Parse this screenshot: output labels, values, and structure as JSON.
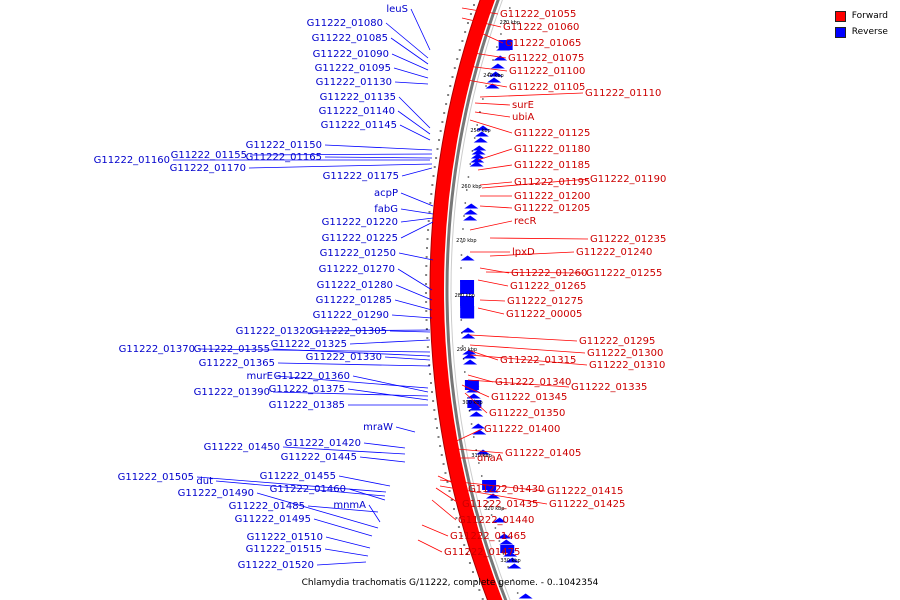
{
  "legend": {
    "items": [
      {
        "label": "Forward",
        "color": "#ff0000"
      },
      {
        "label": "Reverse",
        "color": "#0000ff"
      }
    ]
  },
  "caption": "Chlamydia trachomatis G/11222, complete genome. - 0..1042354",
  "colors": {
    "forward": "#ff0000",
    "reverse": "#0000ff",
    "backbone": "#888888",
    "tick": "#000000"
  },
  "scale_labels": [
    "220 kbp",
    "240 kbp",
    "250 kbp",
    "260 kbp",
    "270 kbp",
    "280 kbp",
    "290 kbp",
    "300 kbp",
    "310 kbp",
    "320 kbp",
    "330 kbp"
  ],
  "forward_labels": [
    "G11222_01055",
    "G11222_01060",
    "G11222_01065",
    "G11222_01075",
    "G11222_01100",
    "G11222_01105",
    "G11222_01110",
    "surE",
    "ubiA",
    "G11222_01125",
    "G11222_01180",
    "G11222_01185",
    "G11222_01195",
    "G11222_01190",
    "G11222_01200",
    "G11222_01205",
    "recR",
    "G11222_01235",
    "lpxD",
    "G11222_01240",
    "G11222_01260",
    "G11222_01255",
    "G11222_01265",
    "G11222_01275",
    "G11222_00005",
    "G11222_01295",
    "G11222_01300",
    "G11222_01315",
    "G11222_01310",
    "G11222_01340",
    "G11222_01335",
    "G11222_01345",
    "G11222_01350",
    "G11222_01400",
    "G11222_01405",
    "dnaA",
    "G11222_01430",
    "G11222_01415",
    "G11222_01435",
    "G11222_01425",
    "G11222_01440",
    "G11222_01465",
    "G11222_01475"
  ],
  "reverse_labels": [
    "leuS",
    "G11222_01080",
    "G11222_01085",
    "G11222_01090",
    "G11222_01095",
    "G11222_01130",
    "G11222_01135",
    "G11222_01140",
    "G11222_01145",
    "G11222_01150",
    "G11222_01155",
    "G11222_01165",
    "G11222_01160",
    "G11222_01170",
    "G11222_01175",
    "acpP",
    "fabG",
    "G11222_01220",
    "G11222_01225",
    "G11222_01250",
    "G11222_01270",
    "G11222_01280",
    "G11222_01285",
    "G11222_01290",
    "G11222_01320",
    "G11222_01305",
    "G11222_01325",
    "G11222_01370",
    "G11222_01355",
    "G11222_01330",
    "G11222_01365",
    "murE",
    "G11222_01360",
    "G11222_01390",
    "G11222_01375",
    "G11222_01385",
    "mraW",
    "G11222_01450",
    "G11222_01420",
    "G11222_01445",
    "G11222_01455",
    "G11222_01505",
    "dut",
    "G11222_01460",
    "G11222_01490",
    "G11222_01485",
    "mnmA",
    "G11222_01495",
    "G11222_01510",
    "G11222_01515",
    "G11222_01520"
  ]
}
